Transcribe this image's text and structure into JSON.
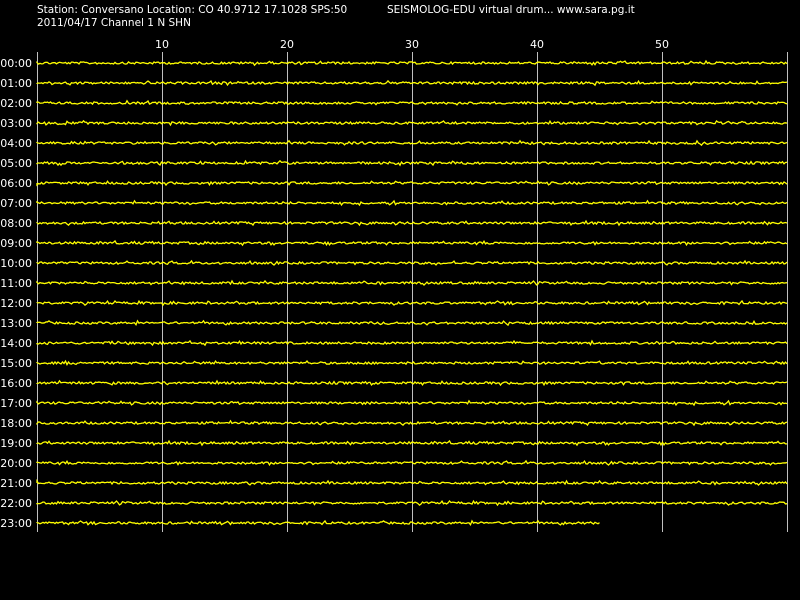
{
  "header": {
    "station_line": "Station: Conversano Location: CO 40.9712 17.1028 SPS:50",
    "date_line": "2011/04/17  Channel 1 N SHN",
    "right_line": "SEISMOLOG-EDU virtual drum... www.sara.pg.it"
  },
  "colors": {
    "background": "#000000",
    "trace": "#ffff00",
    "grid": "#c0c0c0",
    "text": "#ffffff"
  },
  "chart_data": {
    "type": "line",
    "title": "",
    "xlabel": "",
    "ylabel": "",
    "x_unit": "minutes",
    "xlim": [
      0,
      60
    ],
    "x_ticks": [
      10,
      20,
      30,
      40,
      50
    ],
    "grid": true,
    "rows": [
      {
        "label": "00:00",
        "end_minute": 60
      },
      {
        "label": "01:00",
        "end_minute": 60
      },
      {
        "label": "02:00",
        "end_minute": 60
      },
      {
        "label": "03:00",
        "end_minute": 60
      },
      {
        "label": "04:00",
        "end_minute": 60
      },
      {
        "label": "05:00",
        "end_minute": 60
      },
      {
        "label": "06:00",
        "end_minute": 60
      },
      {
        "label": "07:00",
        "end_minute": 60
      },
      {
        "label": "08:00",
        "end_minute": 60
      },
      {
        "label": "09:00",
        "end_minute": 60
      },
      {
        "label": "10:00",
        "end_minute": 60
      },
      {
        "label": "11:00",
        "end_minute": 60
      },
      {
        "label": "12:00",
        "end_minute": 60
      },
      {
        "label": "13:00",
        "end_minute": 60
      },
      {
        "label": "14:00",
        "end_minute": 60
      },
      {
        "label": "15:00",
        "end_minute": 60
      },
      {
        "label": "16:00",
        "end_minute": 60
      },
      {
        "label": "17:00",
        "end_minute": 60
      },
      {
        "label": "18:00",
        "end_minute": 60
      },
      {
        "label": "19:00",
        "end_minute": 60
      },
      {
        "label": "20:00",
        "end_minute": 60
      },
      {
        "label": "21:00",
        "end_minute": 60
      },
      {
        "label": "22:00",
        "end_minute": 60
      },
      {
        "label": "23:00",
        "end_minute": 45
      }
    ]
  }
}
